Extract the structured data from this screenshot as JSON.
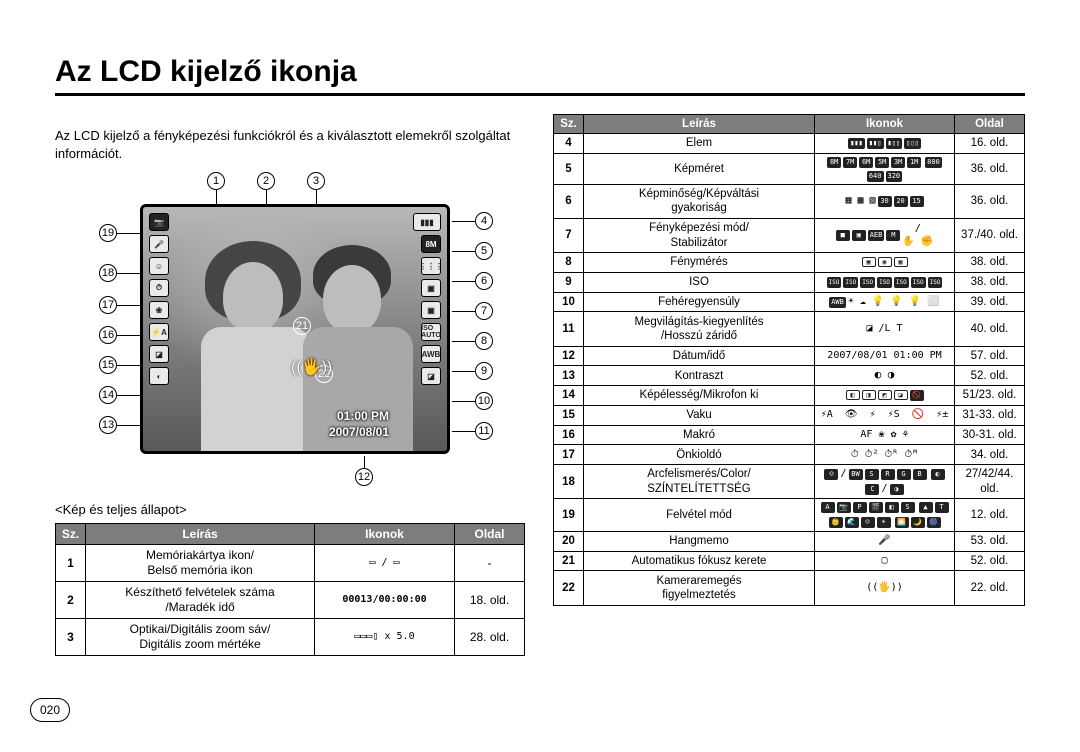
{
  "title": "Az LCD kijelző ikonja",
  "intro": "Az LCD kijelző a fényképezési funkciókról és a kiválasztott elemekről szolgáltat információt.",
  "screenOverlay": {
    "time": "01:00 PM",
    "date": "2007/08/01",
    "counter": "00013/00:00:00"
  },
  "caption": "<Kép és teljes állapot>",
  "tableHeaders": {
    "sz": "Sz.",
    "leiras": "Leírás",
    "ikonok": "Ikonok",
    "oldal": "Oldal"
  },
  "callouts": {
    "top": [
      "1",
      "2",
      "3"
    ],
    "right": [
      "4",
      "5",
      "6",
      "7",
      "8",
      "9",
      "10",
      "11"
    ],
    "bottom": [
      "12"
    ],
    "left": [
      "13",
      "14",
      "15",
      "16",
      "17",
      "18",
      "19"
    ],
    "inside": [
      "21",
      "22"
    ]
  },
  "leftTable": [
    {
      "sz": "1",
      "desc": "Memóriakártya ikon/\nBelső memória ikon",
      "ikon": "▭ / ▭",
      "oldal": "-"
    },
    {
      "sz": "2",
      "desc": "Készíthető felvételek száma\n/Maradék idő",
      "ikon": "00013/00:00:00",
      "oldal": "18. old.",
      "ikonBold": true
    },
    {
      "sz": "3",
      "desc": "Optikai/Digitális zoom sáv/\nDigitális zoom mértéke",
      "ikon": "▭▭▭▯  x 5.0",
      "oldal": "28. old."
    }
  ],
  "rightTable": [
    {
      "sz": "4",
      "desc": "Elem",
      "ikon": "batt",
      "oldal": "16. old."
    },
    {
      "sz": "5",
      "desc": "Képméret",
      "ikon": "sizes",
      "oldal": "36. old."
    },
    {
      "sz": "6",
      "desc": "Képminőség/Képváltási\ngyakoriság",
      "ikon": "quality",
      "oldal": "36. old."
    },
    {
      "sz": "7",
      "desc": "Fényképezési mód/\nStabilizátor",
      "ikon": "meter",
      "oldal": "37./40. old."
    },
    {
      "sz": "8",
      "desc": "Fénymérés",
      "ikon": "metering",
      "oldal": "38. old."
    },
    {
      "sz": "9",
      "desc": "ISO",
      "ikon": "iso",
      "oldal": "38. old."
    },
    {
      "sz": "10",
      "desc": "Fehéregyensúly",
      "ikon": "wb",
      "oldal": "39. old."
    },
    {
      "sz": "11",
      "desc": "Megvilágítás-kiegyenlítés\n/Hosszú záridő",
      "ikon": "ev",
      "oldal": "40. old."
    },
    {
      "sz": "12",
      "desc": "Dátum/idő",
      "ikon": "datetime",
      "oldal": "57. old."
    },
    {
      "sz": "13",
      "desc": "Kontraszt",
      "ikon": "contrast",
      "oldal": "52. old."
    },
    {
      "sz": "14",
      "desc": "Képélesség/Mikrofon ki",
      "ikon": "sharp",
      "oldal": "51/23. old."
    },
    {
      "sz": "15",
      "desc": "Vaku",
      "ikon": "flash",
      "oldal": "31-33. old."
    },
    {
      "sz": "16",
      "desc": "Makró",
      "ikon": "macro",
      "oldal": "30-31. old."
    },
    {
      "sz": "17",
      "desc": "Önkioldó",
      "ikon": "timer",
      "oldal": "34. old."
    },
    {
      "sz": "18",
      "desc": "Arcfelismerés/Color/\nSZÍNTELÍTETTSÉG",
      "ikon": "face",
      "oldal": "27/42/44.\nold."
    },
    {
      "sz": "19",
      "desc": "Felvétel mód",
      "ikon": "mode",
      "oldal": "12. old."
    },
    {
      "sz": "20",
      "desc": "Hangmemo",
      "ikon": "mic",
      "oldal": "53. old."
    },
    {
      "sz": "21",
      "desc": "Automatikus fókusz kerete",
      "ikon": "afframe",
      "oldal": "52. old."
    },
    {
      "sz": "22",
      "desc": "Kameraremegés\nfigyelmeztetés",
      "ikon": "shake",
      "oldal": "22. old."
    }
  ],
  "ikonText": {
    "datetime": "2007/08/01 01:00 PM",
    "ev": "◪ /L T",
    "macro": "AF ❀ ✿ ⚘",
    "mic": "🎤",
    "afframe": "▢",
    "shake": "((🖐))"
  },
  "pageNumber": "020"
}
